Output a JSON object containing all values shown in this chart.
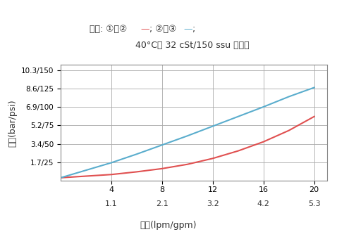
{
  "title_line2": "40°C时 32 cSt/150 ssu 的油液",
  "xlabel": "流量(lpm/gpm)",
  "ylabel": "压降(bar/psi)",
  "x_ticks_lpm": [
    4,
    8,
    12,
    16,
    20
  ],
  "x_ticks_gpm": [
    "1.1",
    "2.1",
    "3.2",
    "4.2",
    "5.3"
  ],
  "y_ticks_bar": [
    1.7,
    3.4,
    5.2,
    6.9,
    8.6,
    10.3
  ],
  "y_ticks_labels": [
    "1.7/25",
    "3.4/50",
    "5.2/75",
    "6.9/100",
    "8.6/125",
    "10.3/150"
  ],
  "xlim": [
    0,
    21
  ],
  "ylim": [
    0,
    10.8
  ],
  "color_red": "#e05050",
  "color_blue": "#5aadcd",
  "grid_color": "#aaaaaa",
  "background_color": "#ffffff",
  "curve1_x": [
    0,
    2,
    4,
    6,
    8,
    10,
    12,
    14,
    16,
    18,
    20
  ],
  "curve1_y": [
    0.3,
    0.45,
    0.6,
    0.85,
    1.15,
    1.55,
    2.1,
    2.8,
    3.65,
    4.7,
    6.0
  ],
  "curve2_x": [
    0,
    2,
    4,
    6,
    8,
    10,
    12,
    14,
    16,
    18,
    20
  ],
  "curve2_y": [
    0.3,
    1.0,
    1.7,
    2.5,
    3.35,
    4.2,
    5.1,
    6.0,
    6.9,
    7.85,
    8.7
  ],
  "title_parts": [
    {
      "text": "压降: ①到② ",
      "color": "#333333"
    },
    {
      "text": "—",
      "color": "#e05050"
    },
    {
      "text": "; ②到③ ",
      "color": "#333333"
    },
    {
      "text": "—",
      "color": "#5aadcd"
    },
    {
      "text": ";",
      "color": "#333333"
    }
  ]
}
